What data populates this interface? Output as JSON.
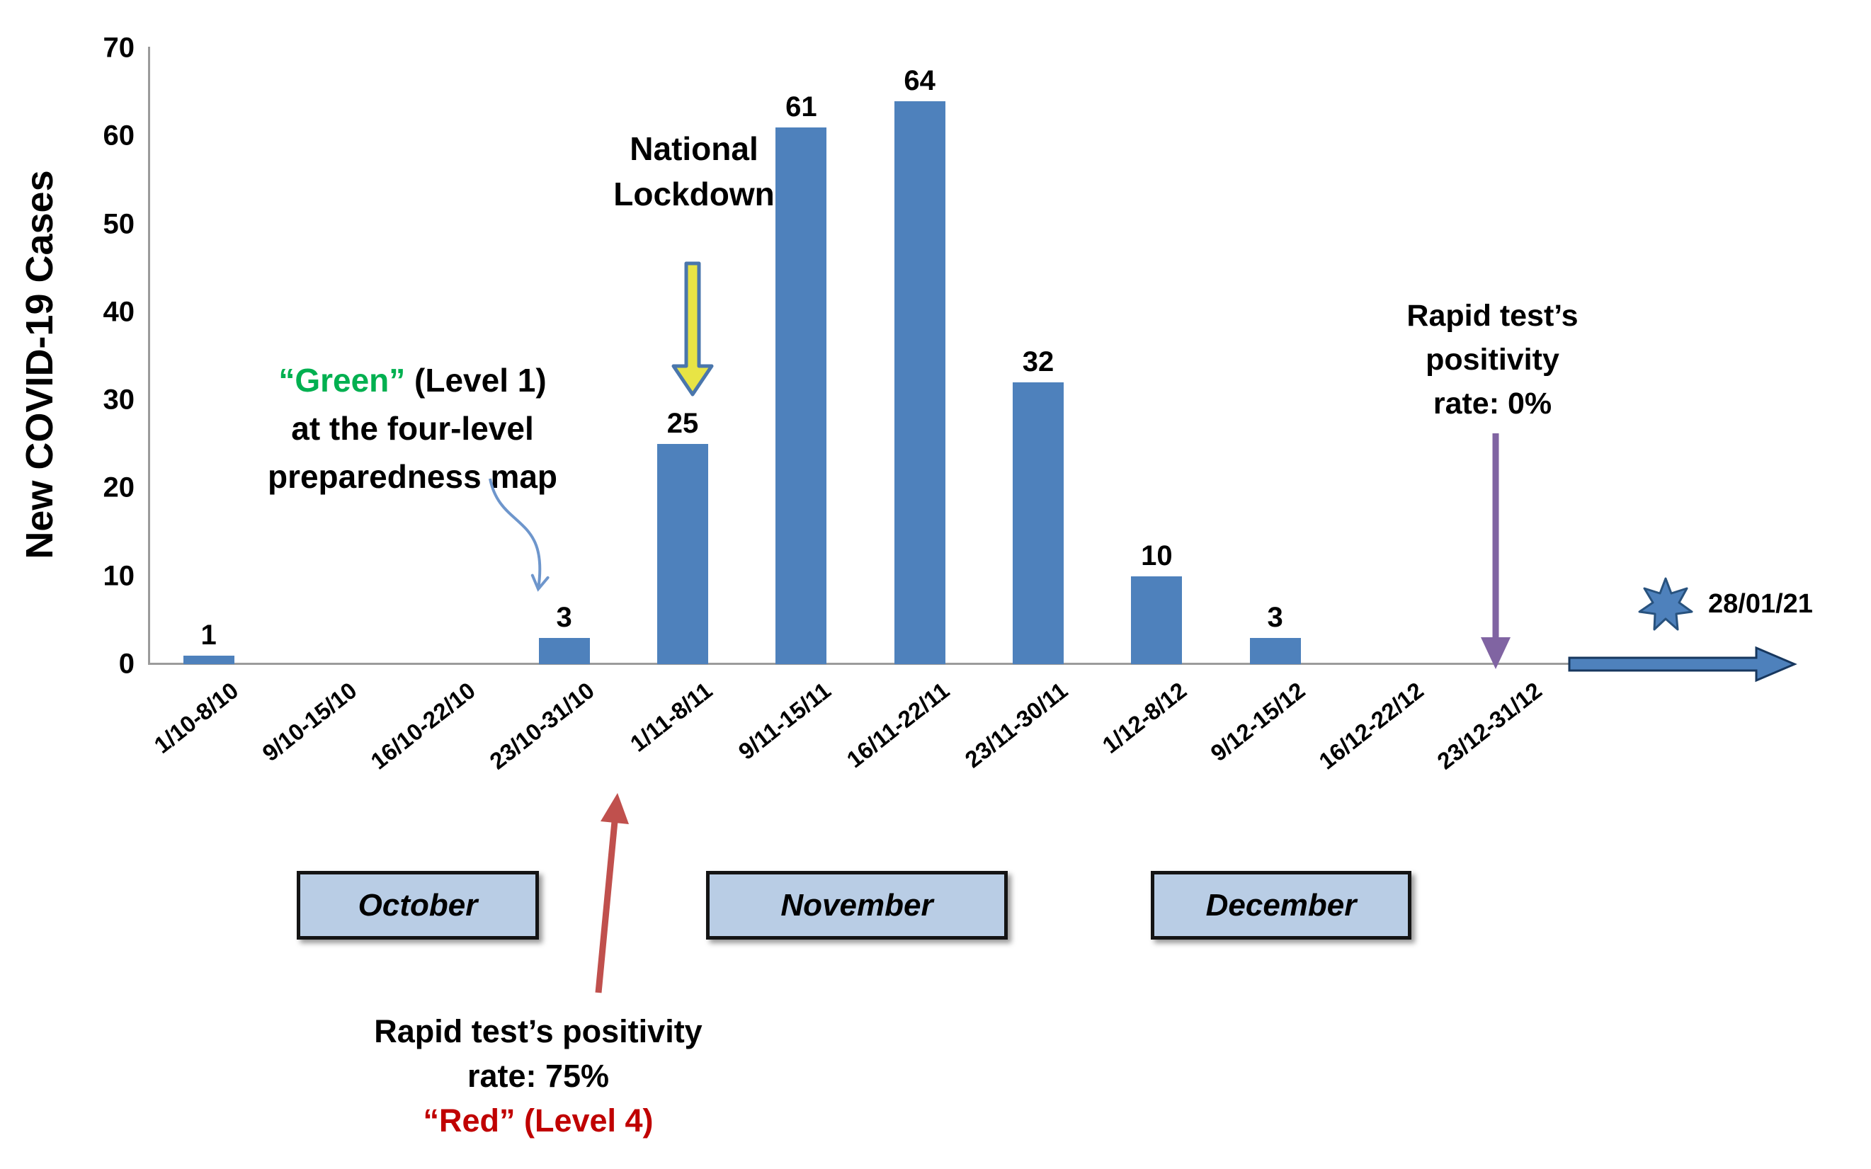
{
  "chart_data": {
    "type": "bar",
    "title": "",
    "xlabel": "",
    "ylabel": "New COVID-19 Cases",
    "categories": [
      "1/10-8/10",
      "9/10-15/10",
      "16/10-22/10",
      "23/10-31/10",
      "1/11-8/11",
      "9/11-15/11",
      "16/11-22/11",
      "23/11-30/11",
      "1/12-8/12",
      "9/12-15/12",
      "16/12-22/12",
      "23/12-31/12"
    ],
    "values": [
      1,
      0,
      0,
      3,
      25,
      61,
      64,
      32,
      10,
      3,
      0,
      0
    ],
    "bar_labels": [
      "1",
      "",
      "",
      "3",
      "25",
      "61",
      "64",
      "32",
      "10",
      "3",
      "",
      ""
    ],
    "ylim": [
      0,
      70
    ],
    "yticks": [
      0,
      10,
      20,
      30,
      40,
      50,
      60,
      70
    ],
    "grid": false,
    "legend": "none",
    "bar_color": "#4e81bc"
  },
  "months": [
    {
      "label": "October"
    },
    {
      "label": "November"
    },
    {
      "label": "December"
    }
  ],
  "annotations": {
    "green_note": {
      "highlight": "“Green”",
      "after_highlight": " (Level 1)",
      "line2": "at the four-level",
      "line3": "preparedness map",
      "highlight_color": "#00b050"
    },
    "national_lockdown": {
      "line1": "National",
      "line2": "Lockdown"
    },
    "rapid_zero": {
      "line1": "Rapid test’s",
      "line2": "positivity",
      "line3": "rate: 0%"
    },
    "rapid_seventyfive": {
      "line1": "Rapid test’s positivity",
      "line2": "rate: 75%",
      "line3": "“Red” (Level 4)",
      "line3_color": "#c00000"
    },
    "date_label": "28/01/21"
  },
  "colors": {
    "bar": "#4e81bc",
    "axis": "#9b9b9b",
    "month_box_fill": "#b9cde5",
    "green_text": "#00b050",
    "red_text": "#c00000",
    "red_arrow": "#c0504d",
    "purple_arrow": "#8064a2",
    "curve_arrow": "#6e96cc",
    "block_arrow_fill": "#e8e445",
    "block_arrow_stroke": "#4a76ac",
    "timeline_arrow_fill": "#4e81bc",
    "timeline_arrow_stroke": "#17375e"
  }
}
